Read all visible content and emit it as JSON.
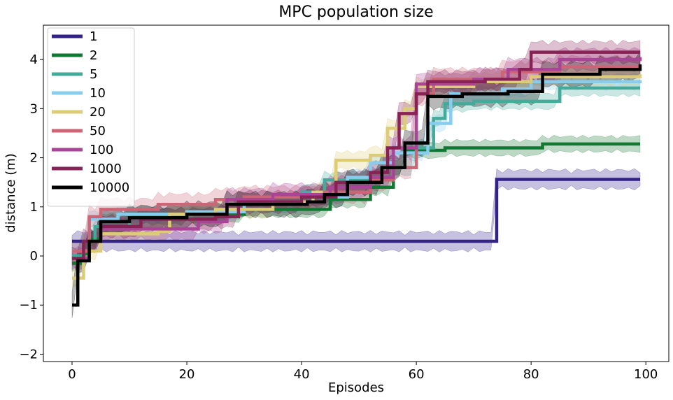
{
  "chart_data": {
    "type": "line",
    "title": "MPC population size",
    "xlabel": "Episodes",
    "ylabel": "distance (m)",
    "xlim": [
      -5,
      104
    ],
    "ylim": [
      -2.15,
      4.7
    ],
    "xticks": [
      0,
      20,
      40,
      60,
      80,
      100
    ],
    "yticks": [
      -2,
      -1,
      0,
      1,
      2,
      3,
      4
    ],
    "xtick_labels": [
      "0",
      "20",
      "40",
      "60",
      "80",
      "100"
    ],
    "ytick_labels": [
      "−2",
      "−1",
      "0",
      "1",
      "2",
      "3",
      "4"
    ],
    "legend_position": "top-left",
    "grid": false,
    "series": [
      {
        "name": "1",
        "color": "#332288",
        "band": 0.22,
        "points": [
          [
            0,
            0.3
          ],
          [
            74,
            1.05
          ],
          [
            74,
            1.56
          ],
          [
            99,
            1.56
          ]
        ]
      },
      {
        "name": "2",
        "color": "#117733",
        "band": 0.18,
        "points": [
          [
            0,
            -0.15
          ],
          [
            2,
            0.05
          ],
          [
            3,
            0.35
          ],
          [
            5,
            0.7
          ],
          [
            10,
            0.8
          ],
          [
            20,
            0.85
          ],
          [
            30,
            0.95
          ],
          [
            45,
            1.15
          ],
          [
            52,
            1.4
          ],
          [
            56,
            1.8
          ],
          [
            58,
            2.15
          ],
          [
            65,
            2.2
          ],
          [
            78,
            2.2
          ],
          [
            82,
            2.28
          ],
          [
            99,
            2.28
          ]
        ]
      },
      {
        "name": "5",
        "color": "#44AA99",
        "band": 0.18,
        "points": [
          [
            0,
            0.0
          ],
          [
            2,
            0.3
          ],
          [
            4,
            0.6
          ],
          [
            10,
            0.85
          ],
          [
            20,
            0.9
          ],
          [
            30,
            1.05
          ],
          [
            40,
            1.3
          ],
          [
            44,
            1.55
          ],
          [
            52,
            1.6
          ],
          [
            56,
            1.8
          ],
          [
            60,
            2.2
          ],
          [
            63,
            2.8
          ],
          [
            65,
            3.1
          ],
          [
            70,
            3.15
          ],
          [
            80,
            3.15
          ],
          [
            85,
            3.42
          ],
          [
            99,
            3.42
          ]
        ]
      },
      {
        "name": "10",
        "color": "#88CCEE",
        "band": 0.18,
        "points": [
          [
            0,
            0.1
          ],
          [
            3,
            0.75
          ],
          [
            8,
            0.85
          ],
          [
            20,
            0.9
          ],
          [
            30,
            1.05
          ],
          [
            40,
            1.2
          ],
          [
            48,
            1.6
          ],
          [
            52,
            1.9
          ],
          [
            56,
            2.1
          ],
          [
            62,
            2.7
          ],
          [
            66,
            3.3
          ],
          [
            75,
            3.4
          ],
          [
            80,
            3.55
          ],
          [
            99,
            3.58
          ]
        ]
      },
      {
        "name": "20",
        "color": "#DDCC77",
        "band": 0.2,
        "points": [
          [
            0,
            -0.45
          ],
          [
            2,
            0.1
          ],
          [
            5,
            0.45
          ],
          [
            15,
            0.5
          ],
          [
            17,
            0.85
          ],
          [
            25,
            0.95
          ],
          [
            35,
            1.1
          ],
          [
            42,
            1.3
          ],
          [
            46,
            1.95
          ],
          [
            52,
            2.05
          ],
          [
            55,
            2.6
          ],
          [
            58,
            3.0
          ],
          [
            60,
            3.45
          ],
          [
            70,
            3.55
          ],
          [
            80,
            3.65
          ],
          [
            99,
            3.7
          ]
        ]
      },
      {
        "name": "50",
        "color": "#CC6677",
        "band": 0.25,
        "points": [
          [
            0,
            0.1
          ],
          [
            3,
            0.8
          ],
          [
            5,
            0.95
          ],
          [
            15,
            1.05
          ],
          [
            25,
            1.15
          ],
          [
            30,
            1.2
          ],
          [
            44,
            1.3
          ],
          [
            52,
            1.55
          ],
          [
            56,
            1.8
          ],
          [
            60,
            3.3
          ],
          [
            63,
            3.6
          ],
          [
            75,
            3.75
          ],
          [
            85,
            3.85
          ],
          [
            99,
            3.85
          ]
        ]
      },
      {
        "name": "100",
        "color": "#AA4499",
        "band": 0.25,
        "points": [
          [
            0,
            -0.05
          ],
          [
            3,
            0.3
          ],
          [
            5,
            0.55
          ],
          [
            22,
            0.7
          ],
          [
            27,
            1.15
          ],
          [
            35,
            1.25
          ],
          [
            45,
            1.4
          ],
          [
            52,
            1.6
          ],
          [
            56,
            2.2
          ],
          [
            60,
            3.5
          ],
          [
            70,
            3.6
          ],
          [
            76,
            3.8
          ],
          [
            85,
            4.0
          ],
          [
            99,
            4.05
          ]
        ]
      },
      {
        "name": "1000",
        "color": "#882255",
        "band": 0.25,
        "points": [
          [
            0,
            -0.05
          ],
          [
            2,
            0.3
          ],
          [
            5,
            0.6
          ],
          [
            12,
            0.75
          ],
          [
            25,
            0.8
          ],
          [
            29,
            1.1
          ],
          [
            40,
            1.2
          ],
          [
            46,
            1.5
          ],
          [
            52,
            1.7
          ],
          [
            55,
            2.2
          ],
          [
            57,
            2.9
          ],
          [
            60,
            3.3
          ],
          [
            62,
            3.55
          ],
          [
            72,
            3.6
          ],
          [
            78,
            3.8
          ],
          [
            80,
            4.15
          ],
          [
            99,
            4.15
          ]
        ]
      },
      {
        "name": "10000",
        "color": "#000000",
        "band": 0.28,
        "points": [
          [
            0,
            -1.0
          ],
          [
            1,
            -0.1
          ],
          [
            3,
            0.3
          ],
          [
            5,
            0.7
          ],
          [
            10,
            0.78
          ],
          [
            20,
            0.85
          ],
          [
            27,
            1.05
          ],
          [
            35,
            1.05
          ],
          [
            41,
            1.1
          ],
          [
            44,
            1.25
          ],
          [
            48,
            1.5
          ],
          [
            54,
            1.8
          ],
          [
            58,
            2.3
          ],
          [
            62,
            3.25
          ],
          [
            68,
            3.3
          ],
          [
            76,
            3.35
          ],
          [
            82,
            3.7
          ],
          [
            92,
            3.8
          ],
          [
            99,
            3.9
          ]
        ]
      }
    ]
  }
}
